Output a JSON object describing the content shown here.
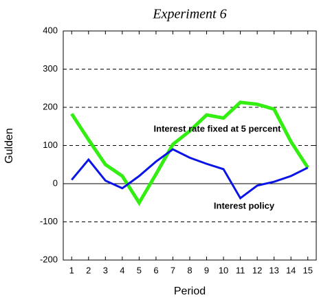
{
  "chart_data": {
    "type": "line",
    "title": "Experiment 6",
    "x_label": "Period",
    "y_label": "Gulden",
    "x": [
      1,
      2,
      3,
      4,
      5,
      6,
      7,
      8,
      9,
      10,
      11,
      12,
      13,
      14,
      15
    ],
    "xlim": [
      0.5,
      15.5
    ],
    "xticks": [
      1,
      2,
      3,
      4,
      5,
      6,
      7,
      8,
      9,
      10,
      11,
      12,
      13,
      14,
      15
    ],
    "ylim": [
      -200,
      400
    ],
    "yticks": [
      -200,
      -100,
      0,
      100,
      200,
      300,
      400
    ],
    "grid": true,
    "series": [
      {
        "name": "Interest rate fixed at 5 percent",
        "color": "#33ee11",
        "values": [
          183,
          115,
          50,
          20,
          -50,
          25,
          103,
          138,
          180,
          172,
          213,
          208,
          195,
          110,
          42
        ]
      },
      {
        "name": "Interest policy",
        "color": "#0a14e6",
        "values": [
          10,
          63,
          8,
          -12,
          20,
          58,
          90,
          68,
          52,
          38,
          -38,
          -5,
          5,
          20,
          42
        ]
      }
    ]
  }
}
